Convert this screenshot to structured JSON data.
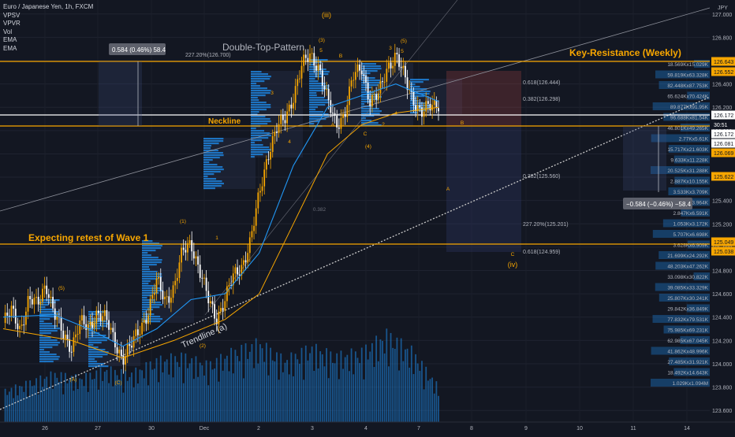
{
  "header": {
    "symbol": "Euro / Japanese Yen, 1h, FXCM",
    "indicators": [
      "VPSV",
      "VPVR",
      "Vol",
      "EMA",
      "EMA"
    ],
    "currency": "JPY"
  },
  "chart_data": {
    "type": "candlestick",
    "currency": "JPY",
    "ylim": [
      123.5,
      127.12
    ],
    "y_ticks": [
      127.0,
      126.8,
      126.6,
      126.4,
      126.2,
      126.0,
      125.8,
      125.6,
      125.4,
      125.2,
      125.0,
      124.8,
      124.6,
      124.4,
      124.2,
      124.0,
      123.8,
      123.6
    ],
    "x_ticks": [
      "26",
      "27",
      "30",
      "Dec",
      "2",
      "3",
      "4",
      "7",
      "8",
      "9",
      "10",
      "11",
      "14"
    ],
    "price_trajectory": [
      [
        0,
        124.35
      ],
      [
        1,
        124.45
      ],
      [
        2,
        124.3
      ],
      [
        3,
        124.55
      ],
      [
        4,
        124.5
      ],
      [
        5,
        124.7
      ],
      [
        6,
        124.42
      ],
      [
        7,
        124.25
      ],
      [
        8,
        124.15
      ],
      [
        9,
        124.35
      ],
      [
        10,
        124.3
      ],
      [
        11,
        124.45
      ],
      [
        12,
        124.38
      ],
      [
        13,
        124.2
      ],
      [
        14,
        124.05
      ],
      [
        15,
        124.15
      ],
      [
        16,
        124.3
      ],
      [
        17,
        124.45
      ],
      [
        18,
        124.7
      ],
      [
        19,
        124.55
      ],
      [
        20,
        124.65
      ],
      [
        21,
        124.95
      ],
      [
        22,
        125.05
      ],
      [
        23,
        124.8
      ],
      [
        24,
        124.55
      ],
      [
        25,
        124.4
      ],
      [
        26,
        124.55
      ],
      [
        27,
        124.75
      ],
      [
        28,
        124.85
      ],
      [
        29,
        125.05
      ],
      [
        30,
        125.45
      ],
      [
        31,
        125.8
      ],
      [
        32,
        126.0
      ],
      [
        33,
        126.1
      ],
      [
        34,
        126.3
      ],
      [
        35,
        126.55
      ],
      [
        36,
        126.65
      ],
      [
        37,
        126.55
      ],
      [
        38,
        126.25
      ],
      [
        39,
        126.05
      ],
      [
        40,
        126.15
      ],
      [
        41,
        126.45
      ],
      [
        42,
        126.55
      ],
      [
        43,
        126.25
      ],
      [
        44,
        126.3
      ],
      [
        45,
        126.55
      ],
      [
        46,
        126.65
      ],
      [
        47,
        126.45
      ],
      [
        48,
        126.28
      ],
      [
        49,
        126.15
      ],
      [
        50,
        126.2
      ],
      [
        51,
        126.24
      ]
    ],
    "ema_fast_trajectory": [
      [
        0,
        124.4
      ],
      [
        6,
        124.42
      ],
      [
        10,
        124.3
      ],
      [
        14,
        124.15
      ],
      [
        18,
        124.3
      ],
      [
        22,
        124.55
      ],
      [
        26,
        124.6
      ],
      [
        30,
        124.95
      ],
      [
        34,
        125.7
      ],
      [
        38,
        126.2
      ],
      [
        42,
        126.3
      ],
      [
        46,
        126.4
      ],
      [
        51,
        126.25
      ]
    ],
    "ema_slow_trajectory": [
      [
        0,
        124.3
      ],
      [
        8,
        124.2
      ],
      [
        14,
        124.05
      ],
      [
        20,
        124.2
      ],
      [
        26,
        124.38
      ],
      [
        30,
        124.6
      ],
      [
        34,
        125.2
      ],
      [
        38,
        125.8
      ],
      [
        42,
        126.05
      ],
      [
        46,
        126.15
      ],
      [
        51,
        126.2
      ]
    ],
    "volume_trajectory": [
      [
        0,
        0.35
      ],
      [
        3,
        0.45
      ],
      [
        6,
        0.55
      ],
      [
        9,
        0.5
      ],
      [
        12,
        0.6
      ],
      [
        15,
        0.55
      ],
      [
        18,
        0.7
      ],
      [
        21,
        0.75
      ],
      [
        24,
        0.65
      ],
      [
        27,
        0.8
      ],
      [
        30,
        0.9
      ],
      [
        33,
        0.7
      ],
      [
        36,
        0.85
      ],
      [
        39,
        0.75
      ],
      [
        42,
        0.8
      ],
      [
        45,
        1.0
      ],
      [
        48,
        0.8
      ],
      [
        51,
        0.4
      ]
    ],
    "annotations": {
      "title": "Double-Top-Pattern",
      "resistance_label": "Key-Resistance (Weekly)",
      "neckline_label": "Neckline",
      "retest_label": "Expecting retest of Wave 1",
      "trendline_label": "Trendline (a)",
      "measure_top": "0.584 (0.46%) 58.4",
      "measure_bottom": "−0.584 (−0.46%) −58.4",
      "fib_top_label": "227.20%(126.700)",
      "fib_labels": [
        "0.618(126.444)",
        "0.382(126.298)",
        "0.382(125.560)",
        "227.20%(125.201)",
        "0.618(124.959)"
      ],
      "wave_labels": [
        "(iii)",
        "(3)",
        "5",
        "B",
        "3",
        "(5)",
        "5",
        "A",
        "C",
        "(4)",
        "2",
        "4",
        "B",
        "A",
        "C",
        "(iv)",
        "(1)",
        "1",
        "2",
        "(2)",
        "(A)",
        "(B)",
        "(C)",
        "(5)",
        "3",
        "4",
        "0.382"
      ]
    },
    "price_axis_badges": [
      {
        "text": "126.643",
        "color": "#f7a600"
      },
      {
        "text": "126.552",
        "color": "#f7a600"
      },
      {
        "text": "126.172",
        "color": "#ffffff"
      },
      {
        "text": "30:51",
        "color": "#131722"
      },
      {
        "text": "126.172",
        "color": "#ffffff"
      },
      {
        "text": "126.081",
        "color": "#ffffff"
      },
      {
        "text": "126.069",
        "color": "#f7a600"
      },
      {
        "text": "125.622",
        "color": "#f7a600"
      },
      {
        "text": "125.049",
        "color": "#f7a600"
      },
      {
        "text": "125.038",
        "color": "#f7a600"
      }
    ],
    "volume_profile_labels": [
      "18.569Kx15.029K",
      "59.819Kx63.328K",
      "82.448Kx87.753K",
      "65.624Kx70.424K",
      "89.877Kx91.95K",
      "96.688Kx81.54K",
      "46.801Kx49.265K",
      "2.77Kx5.61K",
      "15.717Kx21.603K",
      "9.633Kx11.228K",
      "20.525Kx31.288K",
      "2.887Kx10.155K",
      "3.533Kx3.709K",
      "3.393Kx3.964K",
      "2.847Kx6.591K",
      "1.053Kx3.172K",
      "5.707Kx6.698K",
      "3.628Kx6.909K",
      "21.699Kx24.292K",
      "48.203Kx47.262K",
      "33.098Kx30.822K",
      "39.085Kx33.329K",
      "25.807Kx30.241K",
      "29.842Kx36.849K",
      "77.832Kx79.531K",
      "75.985Kx69.231K",
      "62.985Kx67.045K",
      "41.862Kx48.996K",
      "27.485Kx31.921K",
      "18.492Kx14.643K",
      "1.029Kx1.094M"
    ],
    "colors": {
      "background": "#131722",
      "up": "#f7a600",
      "down": "#ffffff",
      "resistance": "#f7a600",
      "ema_fast": "#2196f3",
      "ema_slow": "#f7a600",
      "volume": "#1e88e5",
      "profile": "#1e88e5"
    }
  }
}
